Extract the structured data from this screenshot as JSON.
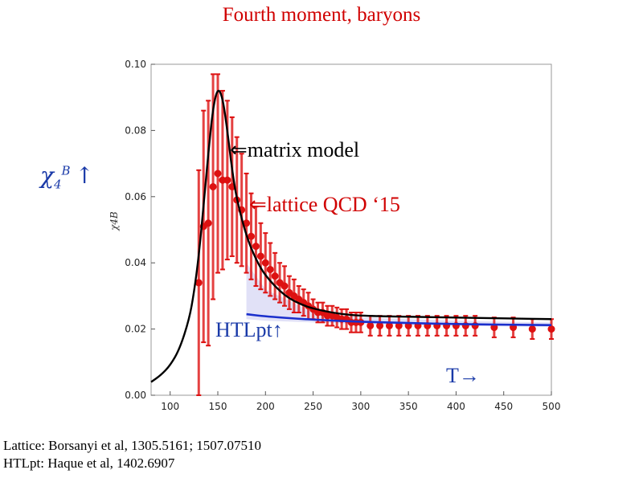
{
  "title": "Fourth moment, baryons",
  "ylabel_big": {
    "symbol": "χ",
    "sup": "B",
    "sub": "4",
    "arrow": "↑"
  },
  "annotations": {
    "matrix": "⇐matrix model",
    "lattice": "⇐lattice QCD ‘15",
    "htl": "HTLpt↑",
    "t": "T→"
  },
  "references": [
    "Lattice: Borsanyi et al, 1305.5161; 1507.07510",
    "HTLpt: Haque et al, 1402.6907"
  ],
  "colors": {
    "lattice": "#dd1111",
    "matrix": "#000000",
    "htl": "#1a2fcc",
    "band": "#c8c8f0"
  },
  "chart_data": {
    "type": "scatter",
    "title": "",
    "xlabel": "",
    "ylabel": "χ4B",
    "xlim": [
      80,
      500
    ],
    "ylim": [
      0,
      0.1
    ],
    "xticks": [
      100,
      150,
      200,
      250,
      300,
      350,
      400,
      450,
      500
    ],
    "yticks": [
      0.0,
      0.02,
      0.04,
      0.06,
      0.08,
      0.1
    ],
    "ytick_labels": [
      "0.00",
      "0.02",
      "0.04",
      "0.06",
      "0.08",
      "0.10"
    ],
    "series": [
      {
        "name": "lattice QCD ‘15",
        "kind": "errorbar",
        "x": [
          130,
          135,
          140,
          145,
          150,
          155,
          160,
          165,
          170,
          175,
          180,
          185,
          190,
          195,
          200,
          205,
          210,
          215,
          220,
          225,
          230,
          235,
          240,
          245,
          250,
          255,
          260,
          265,
          270,
          275,
          280,
          285,
          290,
          295,
          300,
          310,
          320,
          330,
          340,
          350,
          360,
          370,
          380,
          390,
          400,
          410,
          420,
          440,
          460,
          480,
          500
        ],
        "y": [
          0.034,
          0.051,
          0.052,
          0.063,
          0.067,
          0.065,
          0.065,
          0.063,
          0.059,
          0.056,
          0.052,
          0.048,
          0.045,
          0.042,
          0.04,
          0.038,
          0.036,
          0.034,
          0.033,
          0.031,
          0.03,
          0.029,
          0.028,
          0.027,
          0.026,
          0.025,
          0.025,
          0.024,
          0.024,
          0.0235,
          0.023,
          0.023,
          0.022,
          0.022,
          0.022,
          0.021,
          0.021,
          0.021,
          0.021,
          0.021,
          0.021,
          0.021,
          0.021,
          0.021,
          0.021,
          0.021,
          0.021,
          0.0205,
          0.0205,
          0.02,
          0.02
        ],
        "err": [
          0.034,
          0.035,
          0.037,
          0.034,
          0.03,
          0.027,
          0.024,
          0.021,
          0.019,
          0.017,
          0.015,
          0.013,
          0.012,
          0.01,
          0.009,
          0.008,
          0.007,
          0.006,
          0.006,
          0.005,
          0.005,
          0.004,
          0.004,
          0.004,
          0.003,
          0.003,
          0.003,
          0.003,
          0.003,
          0.003,
          0.003,
          0.003,
          0.003,
          0.003,
          0.003,
          0.003,
          0.003,
          0.003,
          0.003,
          0.003,
          0.003,
          0.003,
          0.003,
          0.003,
          0.003,
          0.003,
          0.003,
          0.003,
          0.003,
          0.003,
          0.003
        ]
      },
      {
        "name": "matrix model",
        "kind": "line",
        "x": [
          80,
          90,
          100,
          110,
          120,
          125,
          130,
          135,
          140,
          145,
          150,
          155,
          160,
          165,
          170,
          180,
          190,
          200,
          220,
          240,
          260,
          280,
          300,
          350,
          400,
          450,
          500
        ],
        "y": [
          0.004,
          0.006,
          0.009,
          0.014,
          0.023,
          0.031,
          0.042,
          0.057,
          0.073,
          0.087,
          0.093,
          0.09,
          0.08,
          0.068,
          0.059,
          0.048,
          0.041,
          0.036,
          0.03,
          0.027,
          0.0255,
          0.0245,
          0.024,
          0.0237,
          0.0235,
          0.0232,
          0.023
        ]
      },
      {
        "name": "HTLpt",
        "kind": "line",
        "x": [
          180,
          200,
          250,
          300,
          350,
          400,
          450,
          500
        ],
        "y": [
          0.0245,
          0.0238,
          0.0228,
          0.0222,
          0.0218,
          0.0215,
          0.0213,
          0.0212
        ]
      },
      {
        "name": "HTLpt band",
        "kind": "band",
        "x": [
          180,
          200,
          250,
          300,
          350,
          400,
          450,
          500
        ],
        "upper": [
          0.04,
          0.032,
          0.025,
          0.0235,
          0.023,
          0.0225,
          0.0222,
          0.022
        ],
        "lower": [
          0.023,
          0.0225,
          0.022,
          0.0215,
          0.0212,
          0.021,
          0.0208,
          0.0206
        ]
      }
    ]
  }
}
